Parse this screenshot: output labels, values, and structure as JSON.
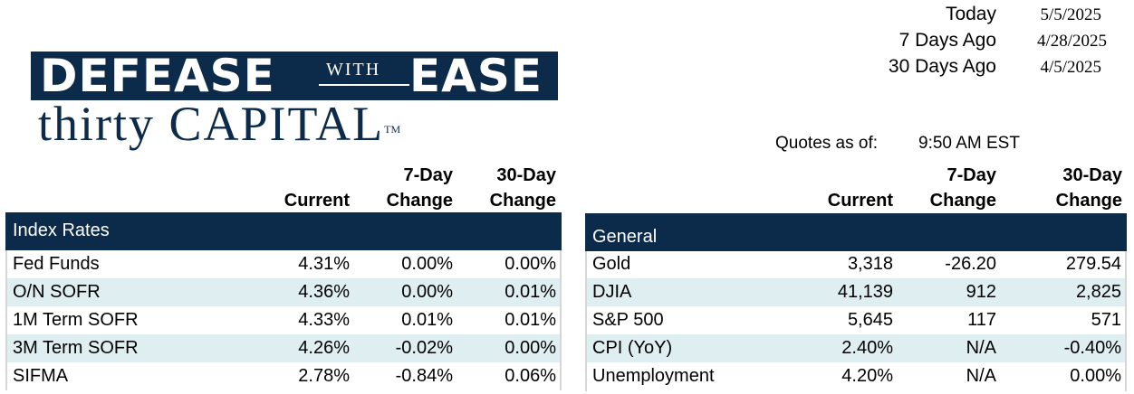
{
  "logo": {
    "line1_left": "DEFEASE",
    "line1_mid": "WITH",
    "line1_right": "EASE",
    "line2": "thirty CAPITAL",
    "tm": "TM"
  },
  "dates": [
    {
      "label": "Today",
      "value": "5/5/2025"
    },
    {
      "label": "7 Days Ago",
      "value": "4/28/2025"
    },
    {
      "label": "30 Days Ago",
      "value": "4/5/2025"
    }
  ],
  "quotes": {
    "label": "Quotes as of:",
    "time": "9:50 AM EST"
  },
  "headers": {
    "current": "Current",
    "seven_top": "7-Day",
    "seven_bottom": "Change",
    "thirty_top": "30-Day",
    "thirty_bottom": "Change"
  },
  "index_rates": {
    "title": "Index Rates",
    "rows": [
      {
        "name": "Fed Funds",
        "current": "4.31%",
        "d7": "0.00%",
        "d30": "0.00%"
      },
      {
        "name": "O/N SOFR",
        "current": "4.36%",
        "d7": "0.00%",
        "d30": "0.01%"
      },
      {
        "name": "1M Term SOFR",
        "current": "4.33%",
        "d7": "0.01%",
        "d30": "0.01%"
      },
      {
        "name": "3M Term SOFR",
        "current": "4.26%",
        "d7": "-0.02%",
        "d30": "0.00%"
      },
      {
        "name": "SIFMA",
        "current": "2.78%",
        "d7": "-0.84%",
        "d30": "0.06%"
      }
    ]
  },
  "general": {
    "title": "General",
    "rows": [
      {
        "name": "Gold",
        "current": "3,318",
        "d7": "-26.20",
        "d30": "279.54"
      },
      {
        "name": "DJIA",
        "current": "41,139",
        "d7": "912",
        "d30": "2,825"
      },
      {
        "name": "S&P 500",
        "current": "5,645",
        "d7": "117",
        "d30": "571"
      },
      {
        "name": "CPI (YoY)",
        "current": "2.40%",
        "d7": "N/A",
        "d30": "-0.40%"
      },
      {
        "name": "Unemployment",
        "current": "4.20%",
        "d7": "N/A",
        "d30": "0.00%"
      }
    ]
  },
  "colors": {
    "brand_navy": "#0c2a4a",
    "row_shade": "#dfeef0"
  }
}
